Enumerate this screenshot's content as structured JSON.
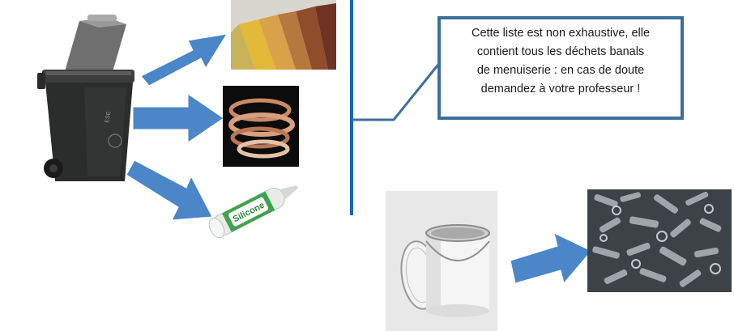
{
  "callout": {
    "lines": [
      "Cette liste est non exhaustive, elle",
      "contient tous les déchets banals",
      "de menuiserie : en cas de doute",
      "demandez à votre professeur !"
    ]
  },
  "bin": {
    "brand": "ESE"
  },
  "silicone": {
    "label": "Silicone"
  },
  "colors": {
    "arrow": "#4a86c8",
    "arrow_edge": "#ffffff",
    "divider": "#1566c0",
    "callout_border": "#3e6f9a",
    "bin": "#2b2d2c",
    "bin_lid": "#8a8a8a"
  },
  "icons": [
    "wheelie-bin-icon",
    "sandpaper-icon",
    "edge-banding-icon",
    "silicone-tube-icon",
    "paint-can-icon",
    "metal-scrap-icon"
  ]
}
